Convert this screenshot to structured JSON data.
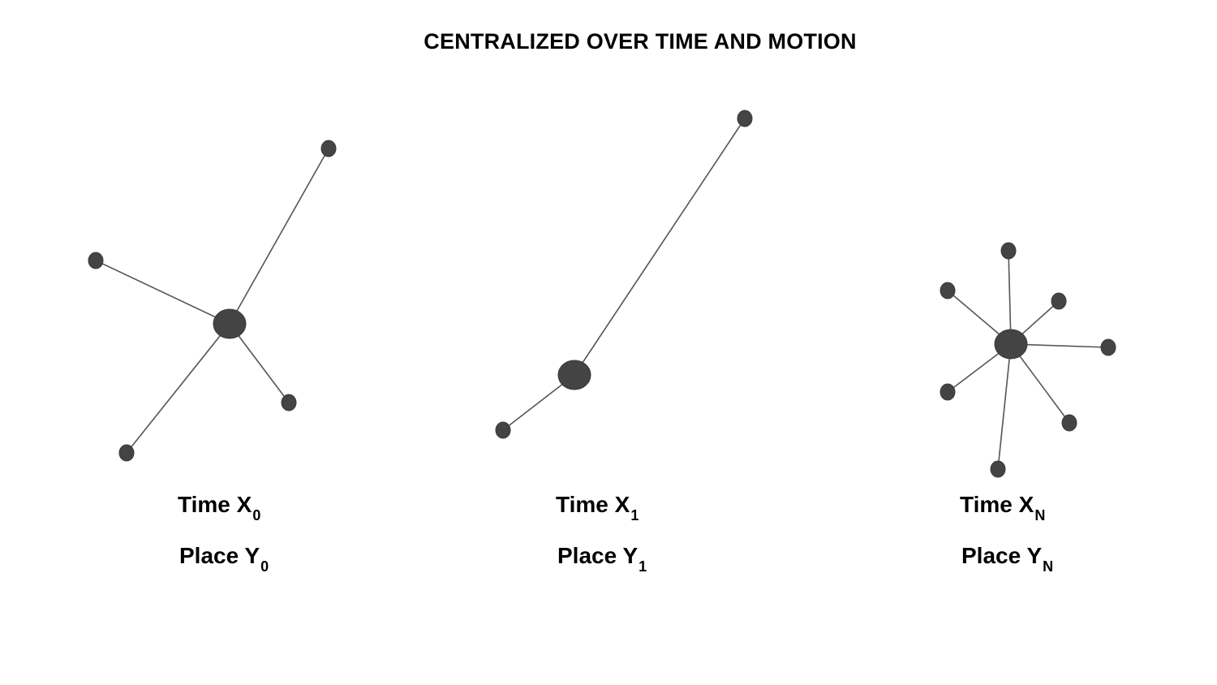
{
  "title": "CENTRALIZED OVER TIME AND MOTION",
  "colors": {
    "node": "#444444",
    "edge": "#555555",
    "text": "#000000"
  },
  "panels": [
    {
      "time_label": "Time X",
      "time_sub": "0",
      "place_label": "Place Y",
      "place_sub": "0"
    },
    {
      "time_label": "Time X",
      "time_sub": "1",
      "place_label": "Place Y",
      "place_sub": "1"
    },
    {
      "time_label": "Time X",
      "time_sub": "N",
      "place_label": "Place Y",
      "place_sub": "N"
    }
  ]
}
